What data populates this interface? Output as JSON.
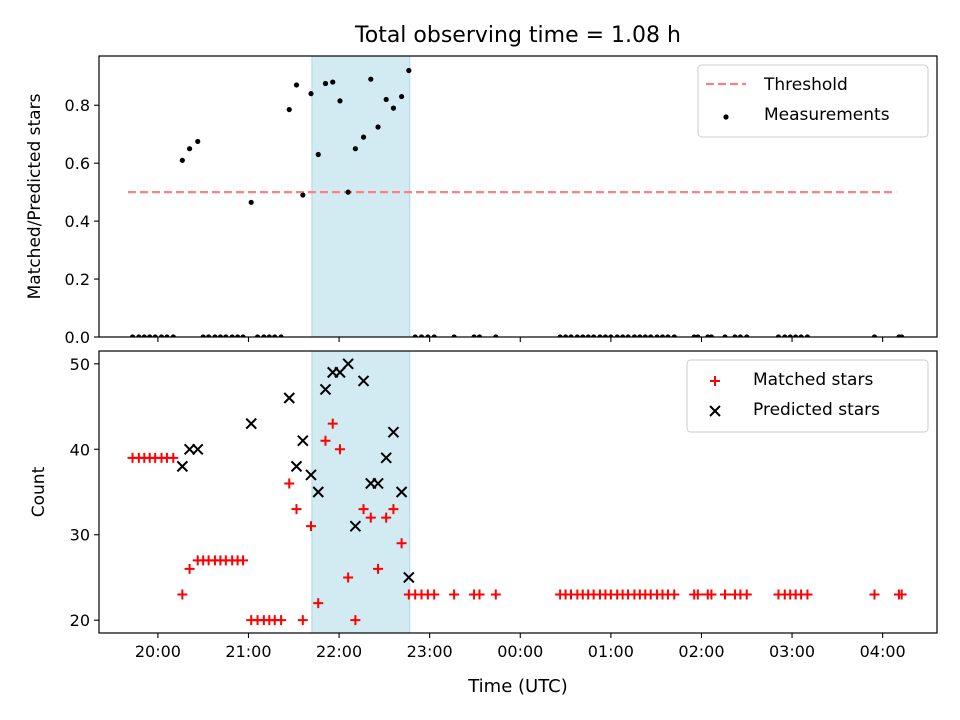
{
  "figure_title": "Total observing time = 1.08 h",
  "xlabel": "Time (UTC)",
  "colors": {
    "threshold": "#ff8080",
    "measurement": "#000000",
    "matched": "#ff0000",
    "predicted": "#000000",
    "shade": "#add8e6"
  },
  "chart_data": [
    {
      "type": "scatter",
      "title": "Total observing time = 1.08 h",
      "ylabel": "Matched/Predicted stars",
      "xlabel": "",
      "xlim_hours": [
        19.35,
        28.6
      ],
      "ylim": [
        0,
        0.97
      ],
      "xticks": [
        {
          "h": 20,
          "label": "20:00"
        },
        {
          "h": 21,
          "label": "21:00"
        },
        {
          "h": 22,
          "label": "22:00"
        },
        {
          "h": 23,
          "label": "23:00"
        },
        {
          "h": 24,
          "label": "00:00"
        },
        {
          "h": 25,
          "label": "01:00"
        },
        {
          "h": 26,
          "label": "02:00"
        },
        {
          "h": 27,
          "label": "03:00"
        },
        {
          "h": 28,
          "label": "04:00"
        }
      ],
      "yticks": [
        {
          "v": 0.0,
          "label": "0.0"
        },
        {
          "v": 0.2,
          "label": "0.2"
        },
        {
          "v": 0.4,
          "label": "0.4"
        },
        {
          "v": 0.6,
          "label": "0.6"
        },
        {
          "v": 0.8,
          "label": "0.8"
        }
      ],
      "shaded_interval_hours": [
        21.7,
        22.78
      ],
      "threshold": {
        "name": "Threshold",
        "value": 0.5,
        "x_range_hours": [
          19.67,
          28.15
        ]
      },
      "legend_position": "top-right",
      "series": [
        {
          "name": "Measurements",
          "points": [
            [
              19.72,
              0
            ],
            [
              19.79,
              0
            ],
            [
              19.85,
              0
            ],
            [
              19.91,
              0
            ],
            [
              19.97,
              0
            ],
            [
              20.04,
              0
            ],
            [
              20.1,
              0
            ],
            [
              20.17,
              0
            ],
            [
              20.27,
              0.61
            ],
            [
              20.35,
              0.65
            ],
            [
              20.44,
              0.675
            ],
            [
              20.5,
              0
            ],
            [
              20.56,
              0
            ],
            [
              20.63,
              0
            ],
            [
              20.69,
              0
            ],
            [
              20.75,
              0
            ],
            [
              20.82,
              0
            ],
            [
              20.88,
              0
            ],
            [
              20.94,
              0
            ],
            [
              21.03,
              0.465
            ],
            [
              21.1,
              0
            ],
            [
              21.17,
              0
            ],
            [
              21.23,
              0
            ],
            [
              21.29,
              0
            ],
            [
              21.36,
              0
            ],
            [
              21.45,
              0.785
            ],
            [
              21.53,
              0.87
            ],
            [
              21.6,
              0.49
            ],
            [
              21.69,
              0.84
            ],
            [
              21.77,
              0.63
            ],
            [
              21.85,
              0.875
            ],
            [
              21.93,
              0.88
            ],
            [
              22.01,
              0.815
            ],
            [
              22.1,
              0.5
            ],
            [
              22.18,
              0.65
            ],
            [
              22.27,
              0.69
            ],
            [
              22.35,
              0.89
            ],
            [
              22.43,
              0.725
            ],
            [
              22.52,
              0.82
            ],
            [
              22.6,
              0.79
            ],
            [
              22.69,
              0.83
            ],
            [
              22.77,
              0.92
            ],
            [
              22.84,
              0
            ],
            [
              22.91,
              0
            ],
            [
              22.98,
              0
            ],
            [
              23.05,
              0
            ],
            [
              23.27,
              0
            ],
            [
              23.49,
              0
            ],
            [
              23.55,
              0
            ],
            [
              23.73,
              0
            ],
            [
              24.44,
              0
            ],
            [
              24.5,
              0
            ],
            [
              24.56,
              0
            ],
            [
              24.63,
              0
            ],
            [
              24.69,
              0
            ],
            [
              24.75,
              0
            ],
            [
              24.81,
              0
            ],
            [
              24.88,
              0
            ],
            [
              24.94,
              0
            ],
            [
              25.0,
              0
            ],
            [
              25.07,
              0
            ],
            [
              25.13,
              0
            ],
            [
              25.19,
              0
            ],
            [
              25.26,
              0
            ],
            [
              25.32,
              0
            ],
            [
              25.38,
              0
            ],
            [
              25.44,
              0
            ],
            [
              25.51,
              0
            ],
            [
              25.57,
              0
            ],
            [
              25.63,
              0
            ],
            [
              25.7,
              0
            ],
            [
              25.92,
              0
            ],
            [
              25.96,
              0
            ],
            [
              26.07,
              0
            ],
            [
              26.11,
              0
            ],
            [
              26.26,
              0
            ],
            [
              26.37,
              0
            ],
            [
              26.43,
              0
            ],
            [
              26.5,
              0
            ],
            [
              26.85,
              0
            ],
            [
              26.92,
              0
            ],
            [
              26.98,
              0
            ],
            [
              27.04,
              0
            ],
            [
              27.1,
              0
            ],
            [
              27.17,
              0
            ],
            [
              27.91,
              0
            ],
            [
              28.18,
              0
            ],
            [
              28.21,
              0
            ]
          ]
        }
      ]
    },
    {
      "type": "scatter",
      "title": "",
      "ylabel": "Count",
      "xlabel": "Time (UTC)",
      "xlim_hours": [
        19.35,
        28.6
      ],
      "ylim": [
        18.5,
        51.5
      ],
      "xticks": [
        {
          "h": 20,
          "label": "20:00"
        },
        {
          "h": 21,
          "label": "21:00"
        },
        {
          "h": 22,
          "label": "22:00"
        },
        {
          "h": 23,
          "label": "23:00"
        },
        {
          "h": 24,
          "label": "00:00"
        },
        {
          "h": 25,
          "label": "01:00"
        },
        {
          "h": 26,
          "label": "02:00"
        },
        {
          "h": 27,
          "label": "03:00"
        },
        {
          "h": 28,
          "label": "04:00"
        }
      ],
      "yticks": [
        {
          "v": 20,
          "label": "20"
        },
        {
          "v": 30,
          "label": "30"
        },
        {
          "v": 40,
          "label": "40"
        },
        {
          "v": 50,
          "label": "50"
        }
      ],
      "shaded_interval_hours": [
        21.7,
        22.78
      ],
      "legend_position": "top-right",
      "series": [
        {
          "name": "Matched stars",
          "marker": "plus",
          "points": [
            [
              19.72,
              39
            ],
            [
              19.79,
              39
            ],
            [
              19.85,
              39
            ],
            [
              19.91,
              39
            ],
            [
              19.97,
              39
            ],
            [
              20.04,
              39
            ],
            [
              20.1,
              39
            ],
            [
              20.17,
              39
            ],
            [
              20.27,
              23
            ],
            [
              20.35,
              26
            ],
            [
              20.44,
              27
            ],
            [
              20.5,
              27
            ],
            [
              20.56,
              27
            ],
            [
              20.63,
              27
            ],
            [
              20.69,
              27
            ],
            [
              20.75,
              27
            ],
            [
              20.82,
              27
            ],
            [
              20.88,
              27
            ],
            [
              20.94,
              27
            ],
            [
              21.03,
              20
            ],
            [
              21.1,
              20
            ],
            [
              21.17,
              20
            ],
            [
              21.23,
              20
            ],
            [
              21.29,
              20
            ],
            [
              21.36,
              20
            ],
            [
              21.45,
              36
            ],
            [
              21.53,
              33
            ],
            [
              21.6,
              20
            ],
            [
              21.69,
              31
            ],
            [
              21.77,
              22
            ],
            [
              21.85,
              41
            ],
            [
              21.93,
              43
            ],
            [
              22.01,
              40
            ],
            [
              22.1,
              25
            ],
            [
              22.18,
              20
            ],
            [
              22.27,
              33
            ],
            [
              22.35,
              32
            ],
            [
              22.43,
              26
            ],
            [
              22.52,
              32
            ],
            [
              22.6,
              33
            ],
            [
              22.69,
              29
            ],
            [
              22.77,
              23
            ],
            [
              22.84,
              23
            ],
            [
              22.91,
              23
            ],
            [
              22.98,
              23
            ],
            [
              23.05,
              23
            ],
            [
              23.27,
              23
            ],
            [
              23.49,
              23
            ],
            [
              23.55,
              23
            ],
            [
              23.73,
              23
            ],
            [
              24.44,
              23
            ],
            [
              24.5,
              23
            ],
            [
              24.56,
              23
            ],
            [
              24.63,
              23
            ],
            [
              24.69,
              23
            ],
            [
              24.75,
              23
            ],
            [
              24.81,
              23
            ],
            [
              24.88,
              23
            ],
            [
              24.94,
              23
            ],
            [
              25.0,
              23
            ],
            [
              25.07,
              23
            ],
            [
              25.13,
              23
            ],
            [
              25.19,
              23
            ],
            [
              25.26,
              23
            ],
            [
              25.32,
              23
            ],
            [
              25.38,
              23
            ],
            [
              25.44,
              23
            ],
            [
              25.51,
              23
            ],
            [
              25.57,
              23
            ],
            [
              25.63,
              23
            ],
            [
              25.7,
              23
            ],
            [
              25.92,
              23
            ],
            [
              25.96,
              23
            ],
            [
              26.07,
              23
            ],
            [
              26.11,
              23
            ],
            [
              26.26,
              23
            ],
            [
              26.37,
              23
            ],
            [
              26.43,
              23
            ],
            [
              26.5,
              23
            ],
            [
              26.85,
              23
            ],
            [
              26.92,
              23
            ],
            [
              26.98,
              23
            ],
            [
              27.04,
              23
            ],
            [
              27.1,
              23
            ],
            [
              27.17,
              23
            ],
            [
              27.91,
              23
            ],
            [
              28.18,
              23
            ],
            [
              28.21,
              23
            ]
          ]
        },
        {
          "name": "Predicted stars",
          "marker": "x",
          "points": [
            [
              20.27,
              38
            ],
            [
              20.35,
              40
            ],
            [
              20.44,
              40
            ],
            [
              21.03,
              43
            ],
            [
              21.45,
              46
            ],
            [
              21.53,
              38
            ],
            [
              21.6,
              41
            ],
            [
              21.69,
              37
            ],
            [
              21.77,
              35
            ],
            [
              21.85,
              47
            ],
            [
              21.93,
              49
            ],
            [
              22.01,
              49
            ],
            [
              22.1,
              50
            ],
            [
              22.18,
              31
            ],
            [
              22.27,
              48
            ],
            [
              22.35,
              36
            ],
            [
              22.43,
              36
            ],
            [
              22.52,
              39
            ],
            [
              22.6,
              42
            ],
            [
              22.69,
              35
            ],
            [
              22.77,
              25
            ]
          ]
        }
      ]
    }
  ]
}
